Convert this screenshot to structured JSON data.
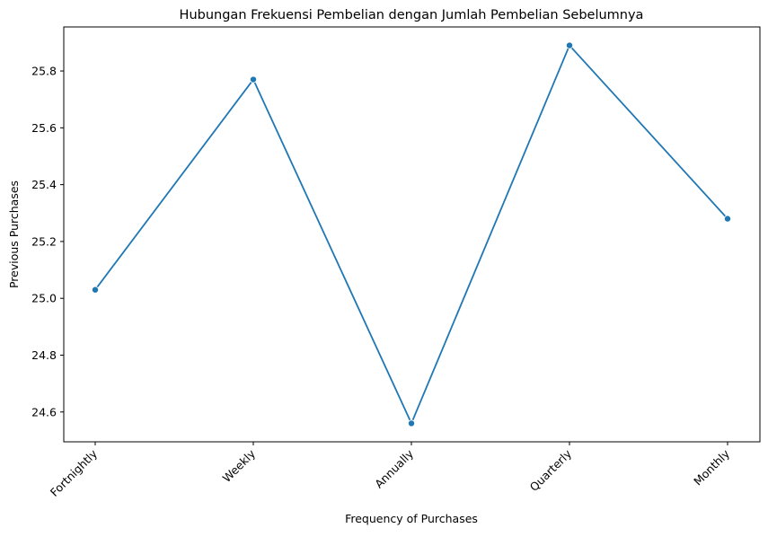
{
  "chart_data": {
    "type": "line",
    "title": "Hubungan Frekuensi Pembelian dengan Jumlah Pembelian Sebelumnya",
    "xlabel": "Frequency of Purchases",
    "ylabel": "Previous Purchases",
    "categories": [
      "Fortnightly",
      "Weekly",
      "Annually",
      "Quarterly",
      "Monthly"
    ],
    "series": [
      {
        "values": [
          25.03,
          25.77,
          24.56,
          25.89,
          25.28
        ],
        "color": "#1f77b4",
        "marker": "circle"
      }
    ],
    "yticks": [
      "24.6",
      "24.8",
      "25.0",
      "25.2",
      "25.4",
      "25.6",
      "25.8"
    ],
    "ylim": [
      24.495,
      25.955
    ],
    "grid": false,
    "legend": "none"
  }
}
